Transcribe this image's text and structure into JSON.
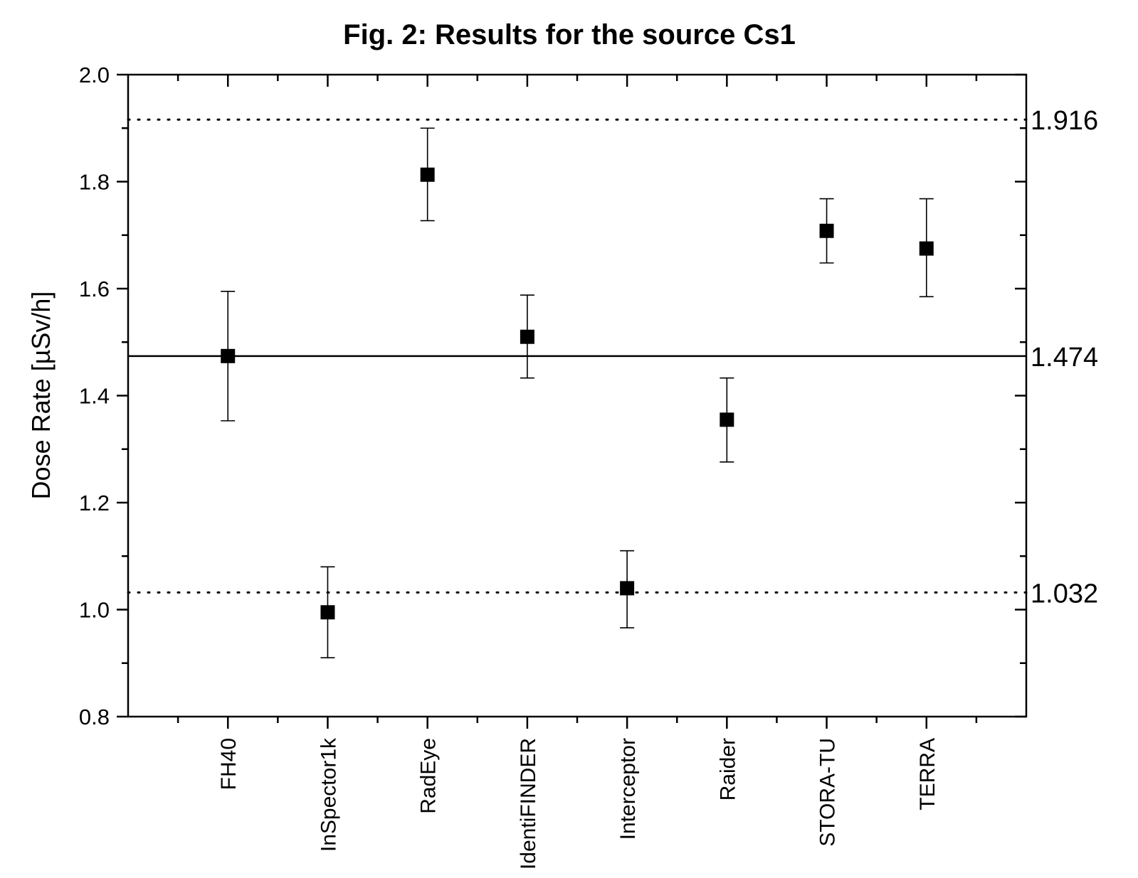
{
  "chart_data": {
    "type": "scatter",
    "title": "Fig. 2: Results for the source Cs1",
    "xlabel": "",
    "ylabel": "Dose Rate [µSv/h]",
    "ylim": [
      0.8,
      2.0
    ],
    "yticks": [
      "0.8",
      "1.0",
      "1.2",
      "1.4",
      "1.6",
      "1.8",
      "2.0"
    ],
    "categories": [
      "FH40",
      "InSpector1k",
      "RadEye",
      "IdentiFINDER",
      "Interceptor",
      "Raider",
      "STORA-TU",
      "TERRA"
    ],
    "values": [
      1.474,
      0.995,
      1.813,
      1.51,
      1.04,
      1.355,
      1.708,
      1.675
    ],
    "err_low": [
      1.353,
      0.91,
      1.727,
      1.433,
      0.966,
      1.276,
      1.648,
      1.585
    ],
    "err_high": [
      1.595,
      1.08,
      1.9,
      1.588,
      1.11,
      1.433,
      1.768,
      1.768
    ],
    "reference_lines": [
      {
        "value": 1.916,
        "label": "1.916",
        "style": "dotted"
      },
      {
        "value": 1.474,
        "label": "1.474",
        "style": "solid"
      },
      {
        "value": 1.032,
        "label": "1.032",
        "style": "dotted"
      }
    ],
    "grid": false,
    "marker": "square",
    "color": "#000000"
  }
}
